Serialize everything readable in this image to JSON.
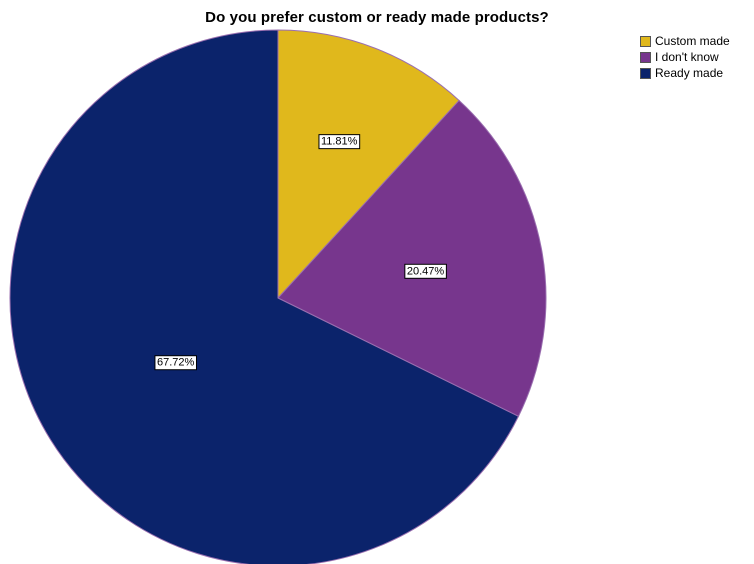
{
  "chart_data": {
    "type": "pie",
    "title": "Do you prefer custom or ready made products?",
    "slices": [
      {
        "name": "Custom made",
        "value": 11.81,
        "label": "11.81%",
        "color": "#e0b81c"
      },
      {
        "name": "I don't know",
        "value": 20.47,
        "label": "20.47%",
        "color": "#77368d"
      },
      {
        "name": "Ready made",
        "value": 67.72,
        "label": "67.72%",
        "color": "#0b236b"
      }
    ],
    "start_angle": "12 o'clock",
    "direction": "clockwise",
    "legend_position": "top-right"
  }
}
